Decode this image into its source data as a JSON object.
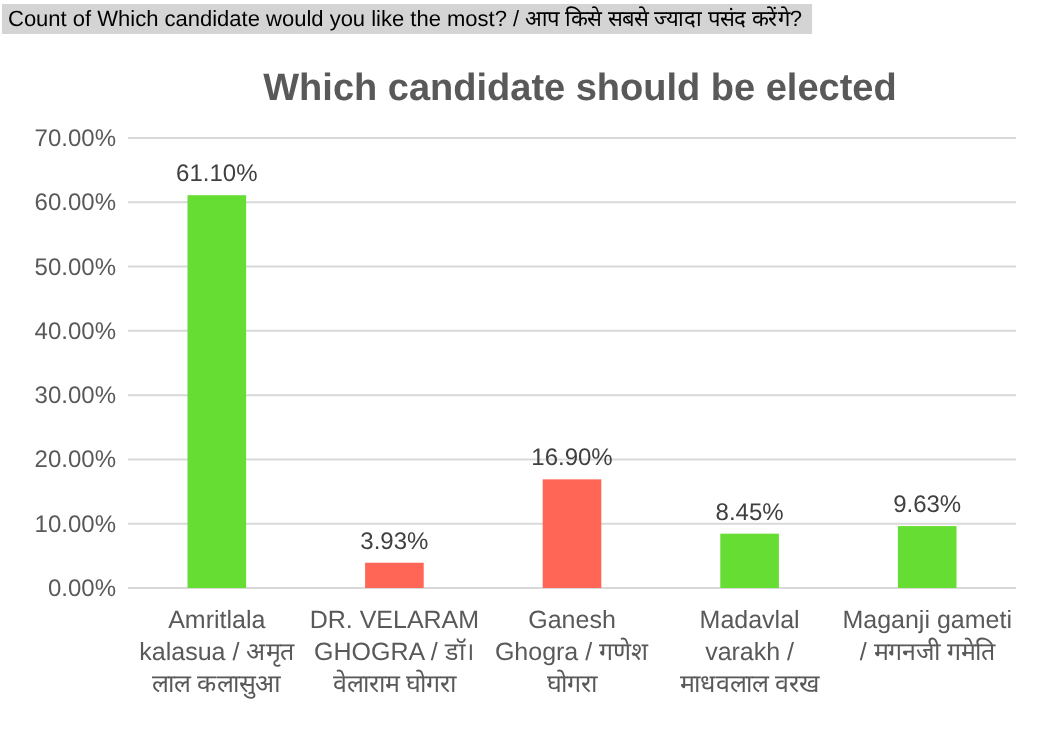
{
  "chart_data": {
    "type": "bar",
    "title": "Which candidate should be elected",
    "annotations": [
      "Count of Which candidate would you like  the most? /   आप किसे सबसे ज्यादा पसंद करेंगे?"
    ],
    "categories": [
      "Amritlala kalasua / अमृत लाल कलासुआ",
      "DR. VELARAM GHOGRA / डॉ। वेलाराम घोगरा",
      "Ganesh Ghogra / गणेश घोगरा",
      "Madavlal varakh / माधवलाल वरख",
      "Maganji gameti / मगनजी गमेति"
    ],
    "values": [
      61.1,
      3.93,
      16.9,
      8.45,
      9.63
    ],
    "colors": [
      "#66dd33",
      "#ff6655",
      "#ff6655",
      "#66dd33",
      "#66dd33"
    ],
    "value_labels": [
      "61.10%",
      "3.93%",
      "16.90%",
      "8.45%",
      "9.63%"
    ],
    "ylim": [
      0,
      70
    ],
    "yticks": [
      {
        "value": 0,
        "label": "0.00%"
      },
      {
        "value": 10,
        "label": "10.00%"
      },
      {
        "value": 20,
        "label": "20.00%"
      },
      {
        "value": 30,
        "label": "30.00%"
      },
      {
        "value": 40,
        "label": "40.00%"
      },
      {
        "value": 50,
        "label": "50.00%"
      },
      {
        "value": 60,
        "label": "60.00%"
      },
      {
        "value": 70,
        "label": "70.00%"
      }
    ],
    "grid": "y"
  }
}
